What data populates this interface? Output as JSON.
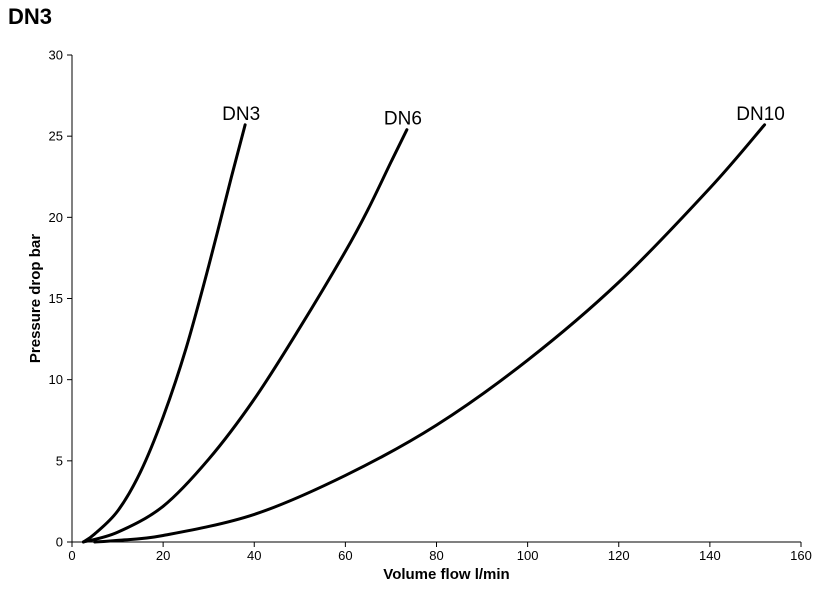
{
  "chart_data": {
    "type": "line",
    "title": "DN3",
    "xlabel": "Volume flow l/min",
    "ylabel": "Pressure drop bar",
    "xlim": [
      0,
      160
    ],
    "ylim": [
      0,
      30
    ],
    "xticks": [
      0,
      20,
      40,
      60,
      80,
      100,
      120,
      140,
      160
    ],
    "yticks": [
      0,
      5,
      10,
      15,
      20,
      25,
      30
    ],
    "grid": false,
    "series": [
      {
        "name": "DN3",
        "x": [
          2.5,
          5,
          10,
          15,
          20,
          25,
          30,
          35,
          38
        ],
        "y": [
          0,
          0.5,
          1.9,
          4.3,
          7.7,
          11.9,
          17.0,
          22.5,
          25.7
        ]
      },
      {
        "name": "DN6",
        "x": [
          2.5,
          10,
          20,
          30,
          40,
          50,
          60,
          65,
          70,
          73.5
        ],
        "y": [
          0,
          0.6,
          2.2,
          5.1,
          8.8,
          13.2,
          17.9,
          20.5,
          23.4,
          25.4
        ]
      },
      {
        "name": "DN10",
        "x": [
          5,
          10,
          20,
          40,
          60,
          80,
          100,
          120,
          140,
          152
        ],
        "y": [
          0,
          0.1,
          0.4,
          1.7,
          4.1,
          7.2,
          11.2,
          16.0,
          21.8,
          25.7
        ]
      }
    ]
  }
}
